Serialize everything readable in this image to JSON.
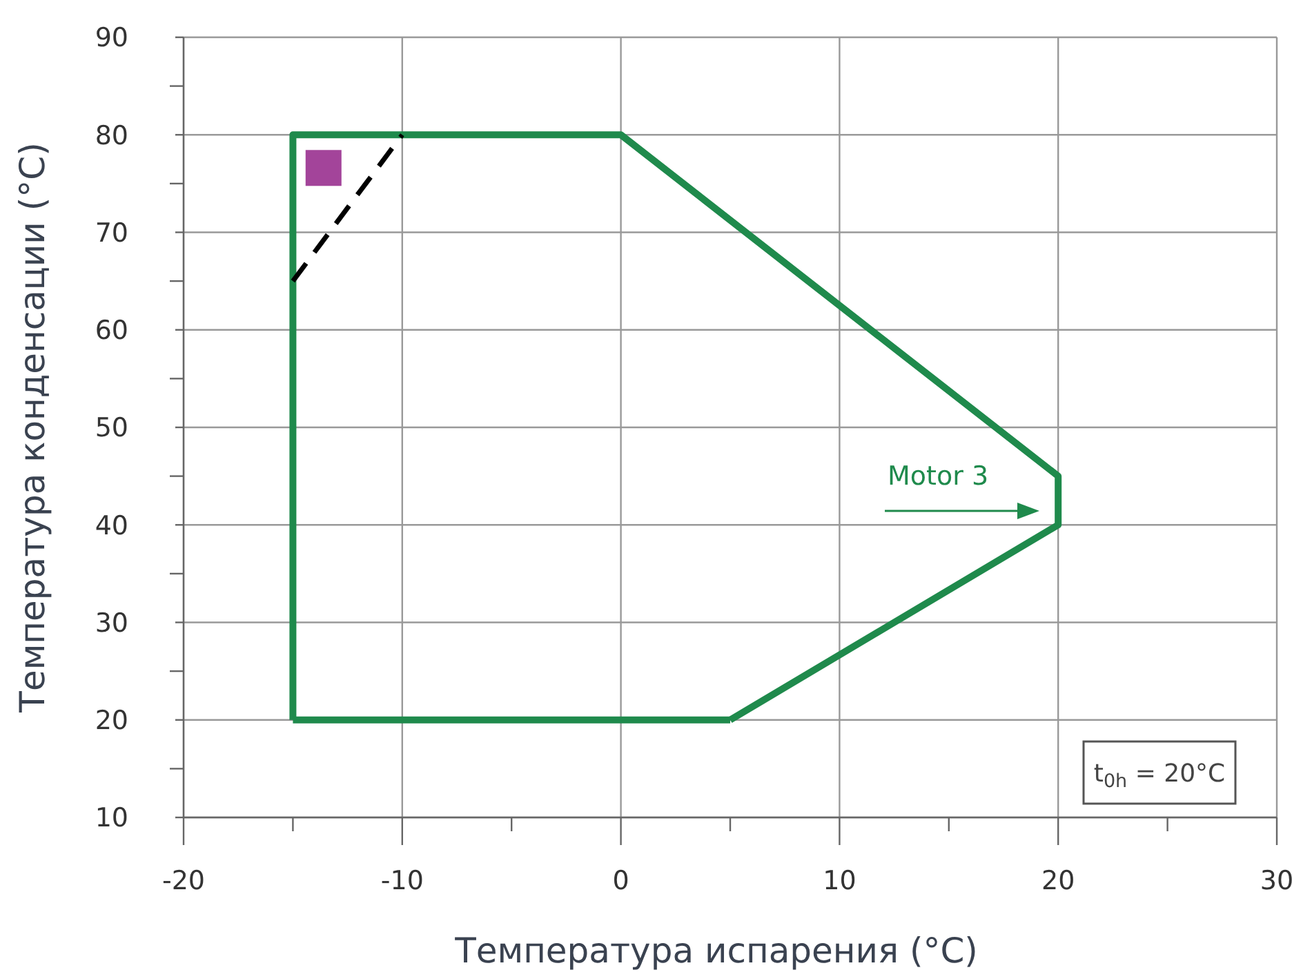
{
  "chart_data": {
    "type": "line",
    "xlabel": "Температура испарения (°C)",
    "ylabel": "Температура конденсации (°C)",
    "xlim": [
      -20,
      30
    ],
    "ylim": [
      10,
      90
    ],
    "xticks": [
      -20,
      {
        "value": -15,
        "label": null
      },
      -10,
      {
        "value": -5,
        "label": null
      },
      0,
      {
        "value": 5,
        "label": null
      },
      10,
      {
        "value": 15,
        "label": null
      },
      20,
      {
        "value": 25,
        "label": null
      },
      30
    ],
    "yticks": [
      10,
      {
        "value": 15,
        "label": null
      },
      20,
      {
        "value": 25,
        "label": null
      },
      30,
      {
        "value": 35,
        "label": null
      },
      40,
      {
        "value": 45,
        "label": null
      },
      50,
      {
        "value": 55,
        "label": null
      },
      60,
      {
        "value": 65,
        "label": null
      },
      70,
      {
        "value": 75,
        "label": null
      },
      80,
      {
        "value": 85,
        "label": null
      },
      90
    ],
    "grid": true,
    "series": [
      {
        "color": "#1f8a4c",
        "x": [
          -15,
          -15,
          0,
          20,
          20,
          5
        ],
        "values": [
          20,
          80,
          80,
          45,
          40,
          20
        ],
        "line_style": "solid",
        "marker": "none"
      },
      {
        "color": "#1f8a4c",
        "x": [
          5,
          -15
        ],
        "values": [
          20,
          20
        ],
        "line_style": "solid",
        "marker": "none"
      },
      {
        "color": "#000000",
        "x": [
          -15,
          -10
        ],
        "values": [
          65,
          80
        ],
        "line_style": "dashed",
        "marker": "none"
      },
      {
        "type": "scatter",
        "color": "#a3449a",
        "x": [
          -13.6
        ],
        "values": [
          76.6
        ],
        "marker": "square"
      }
    ],
    "annotations": [
      "Motor 3",
      "t$_{0h}$ = 20°C"
    ]
  }
}
